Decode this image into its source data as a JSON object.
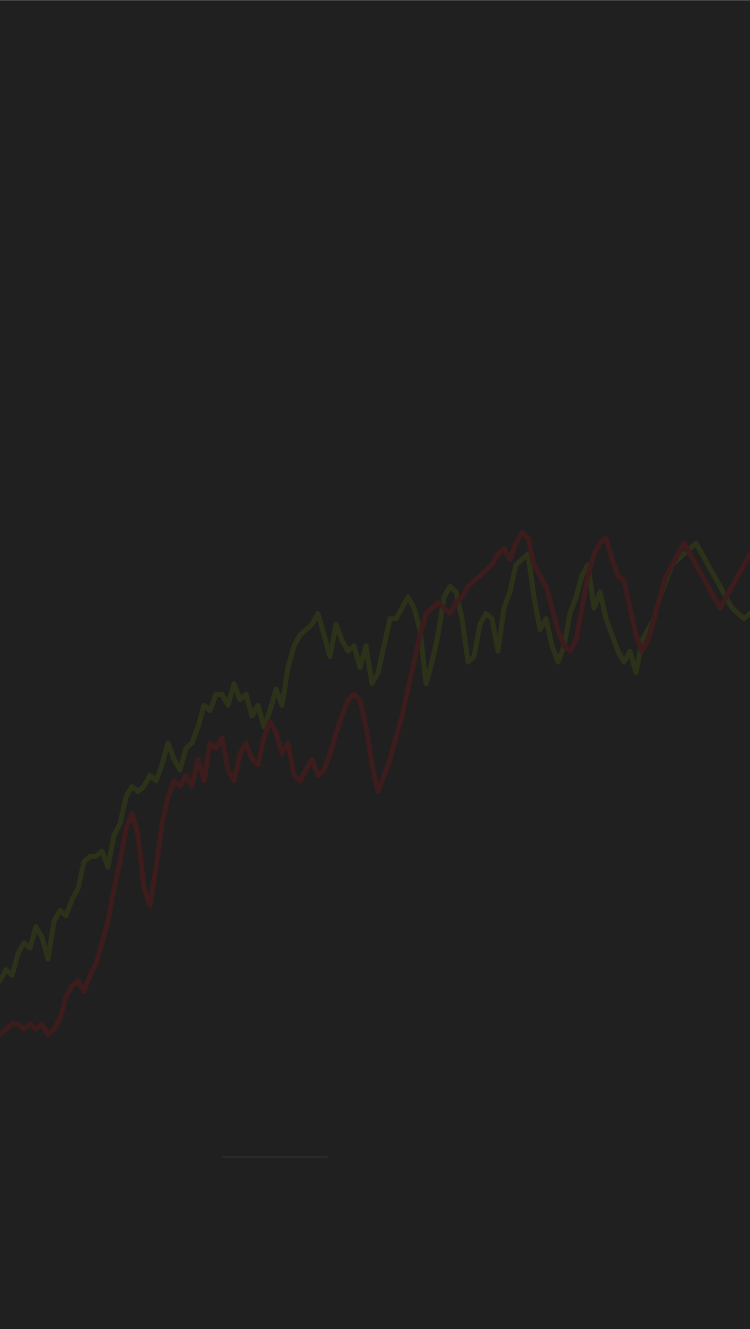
{
  "theme": {
    "background": "#202020",
    "top_edge": "#444444",
    "home_indicator": "#2a2a2a"
  },
  "chart_data": {
    "type": "line",
    "title": "",
    "xlabel": "",
    "ylabel": "",
    "grid": false,
    "legend": "none",
    "x": [
      0,
      1,
      2,
      3,
      4,
      5,
      6,
      7,
      8,
      9,
      10,
      11,
      12,
      13,
      14,
      15,
      16,
      17,
      18,
      19,
      20,
      21,
      22,
      23,
      24,
      25,
      26,
      27,
      28,
      29,
      30,
      31,
      32,
      33,
      34,
      35,
      36,
      37,
      38,
      39,
      40,
      41,
      42,
      43,
      44,
      45,
      46,
      47,
      48,
      49,
      50,
      51,
      52,
      53,
      54,
      55,
      56,
      57,
      58,
      59,
      60,
      61,
      62,
      63,
      64,
      65,
      66,
      67,
      68,
      69,
      70,
      71,
      72,
      73,
      74,
      75,
      76,
      77,
      78,
      79,
      80,
      81,
      82,
      83,
      84,
      85,
      86,
      87,
      88,
      89,
      90,
      91,
      92,
      93,
      94,
      95,
      96,
      97,
      98,
      99,
      100,
      101,
      102,
      103,
      104,
      105,
      106,
      107,
      108,
      109,
      110,
      111,
      112,
      113,
      114,
      115,
      116,
      117,
      118,
      119,
      120,
      121,
      122,
      123,
      124,
      125
    ],
    "ylim": [
      0,
      100
    ],
    "series": [
      {
        "color": "#2c3219",
        "values": [
          11,
          13,
          12,
          16,
          18,
          17,
          21,
          19,
          15,
          22,
          24,
          23,
          26,
          28,
          33,
          34,
          34,
          35,
          32,
          38,
          40,
          45,
          47,
          46,
          47,
          49,
          48,
          51,
          55,
          52,
          50,
          54,
          55,
          58,
          62,
          61,
          64,
          64,
          62,
          66,
          63,
          64,
          60,
          62,
          58,
          61,
          65,
          62,
          69,
          73,
          75,
          76,
          77,
          79,
          75,
          71,
          77,
          74,
          72,
          73,
          69,
          73,
          66,
          68,
          73,
          78,
          78,
          80,
          82,
          80,
          76,
          66,
          70,
          75,
          82,
          84,
          83,
          78,
          70,
          71,
          77,
          79,
          78,
          72,
          80,
          83,
          88,
          89,
          90,
          82,
          76,
          78,
          73,
          70,
          73,
          79,
          82,
          86,
          88,
          80,
          83,
          78,
          75,
          72,
          70,
          72,
          68,
          74,
          76,
          78,
          82,
          85,
          88,
          89,
          90,
          91,
          92,
          90,
          88,
          86,
          84,
          82,
          80,
          79,
          78,
          79
        ]
      },
      {
        "color": "#3c1c1c",
        "values": [
          1,
          2,
          3,
          3,
          2,
          3,
          2,
          3,
          1,
          2,
          4,
          8,
          10,
          11,
          9,
          12,
          14,
          18,
          22,
          28,
          33,
          39,
          42,
          38,
          28,
          25,
          32,
          40,
          45,
          48,
          47,
          49,
          47,
          52,
          48,
          55,
          54,
          56,
          50,
          48,
          53,
          55,
          52,
          51,
          56,
          59,
          57,
          53,
          55,
          49,
          48,
          50,
          52,
          49,
          50,
          53,
          57,
          60,
          63,
          64,
          63,
          58,
          51,
          46,
          49,
          52,
          56,
          60,
          65,
          70,
          75,
          79,
          80,
          81,
          80,
          79,
          81,
          82,
          84,
          85,
          86,
          87,
          88,
          90,
          91,
          89,
          92,
          94,
          93,
          88,
          86,
          84,
          80,
          76,
          73,
          72,
          74,
          80,
          86,
          90,
          92,
          93,
          89,
          86,
          85,
          80,
          75,
          72,
          74,
          78,
          82,
          86,
          88,
          90,
          92,
          90,
          88,
          86,
          84,
          82,
          80,
          82,
          84,
          86,
          88,
          90
        ]
      }
    ]
  }
}
